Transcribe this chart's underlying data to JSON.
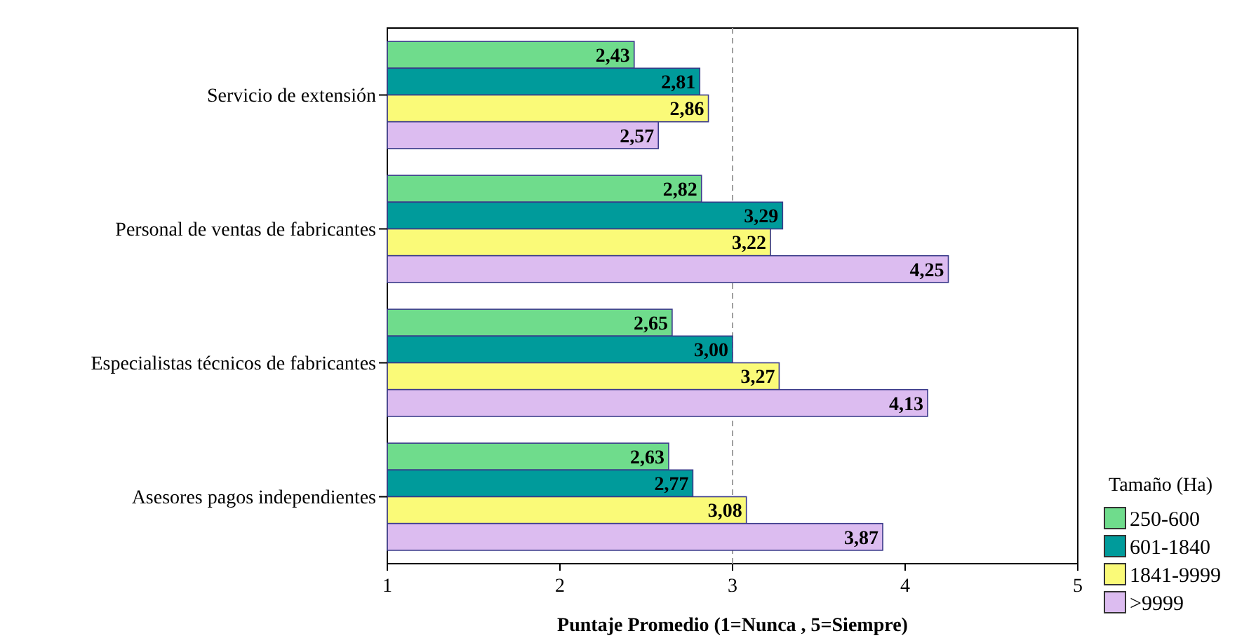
{
  "chart_data": {
    "type": "bar",
    "orientation": "horizontal",
    "xlabel": "Puntaje Promedio (1=Nunca , 5=Siempre)",
    "legend_title": "Tamaño (Ha)",
    "categories": [
      "Servicio de extensión",
      "Personal de ventas de fabricantes",
      "Especialistas técnicos de fabricantes",
      "Asesores pagos independientes"
    ],
    "series": [
      {
        "name": "250-600",
        "color": "#6fdc8c",
        "values": [
          2.43,
          2.82,
          2.65,
          2.63
        ],
        "value_labels": [
          "2,43",
          "2,82",
          "2,65",
          "2,63"
        ]
      },
      {
        "name": "601-1840",
        "color": "#009b9b",
        "values": [
          2.81,
          3.29,
          3.0,
          2.77
        ],
        "value_labels": [
          "2,81",
          "3,29",
          "3,00",
          "2,77"
        ]
      },
      {
        "name": "1841-9999",
        "color": "#fafa78",
        "values": [
          2.86,
          3.22,
          3.27,
          3.08
        ],
        "value_labels": [
          "2,86",
          "3,22",
          "3,27",
          "3,08"
        ]
      },
      {
        "name": ">9999",
        "color": "#dcbcf0",
        "values": [
          2.57,
          4.25,
          4.13,
          3.87
        ],
        "value_labels": [
          "2,57",
          "4,25",
          "4,13",
          "3,87"
        ]
      }
    ],
    "xlim": [
      1,
      5
    ],
    "xticks": [
      1,
      2,
      3,
      4,
      5
    ],
    "legend": "bottom right",
    "grid": false,
    "ref_lines": [
      {
        "axis": "x",
        "value": 3,
        "color": "#a0a0a0",
        "line_style": "dashed"
      }
    ]
  }
}
